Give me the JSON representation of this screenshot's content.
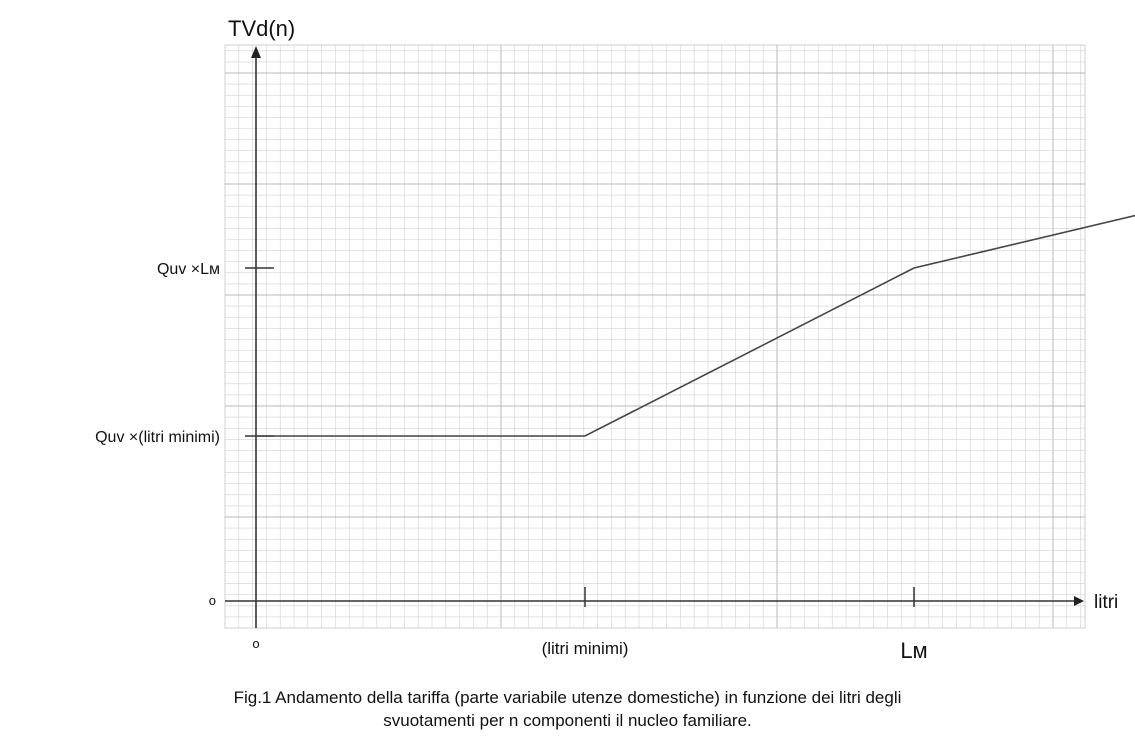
{
  "chart_data": {
    "type": "line",
    "title": "",
    "ylabel": "TVd(n)",
    "xlabel": "litri",
    "x_ticks": [
      {
        "value": 0,
        "label": "o"
      },
      {
        "value": 1,
        "label": "(litri minimi)"
      },
      {
        "value": 2,
        "label": "Lᴍ"
      }
    ],
    "y_ticks": [
      {
        "value": 0,
        "label": "o"
      },
      {
        "value": 1,
        "label": "Quv ×(litri minimi)"
      },
      {
        "value": 2,
        "label": "Quv ×Lᴍ"
      }
    ],
    "x": [
      0,
      1,
      2,
      3.05
    ],
    "y": [
      1,
      1,
      2,
      2.5
    ],
    "xlim": [
      0,
      3.05
    ],
    "ylim": [
      0,
      2.85
    ],
    "grid": true,
    "line_color": "#444444",
    "grid_color": "#d2d2d2"
  },
  "caption": {
    "line1": "Fig.1 Andamento della tariffa (parte variabile utenze domestiche) in funzione dei litri degli",
    "line2": "svuotamenti per n componenti il nucleo familiare."
  }
}
